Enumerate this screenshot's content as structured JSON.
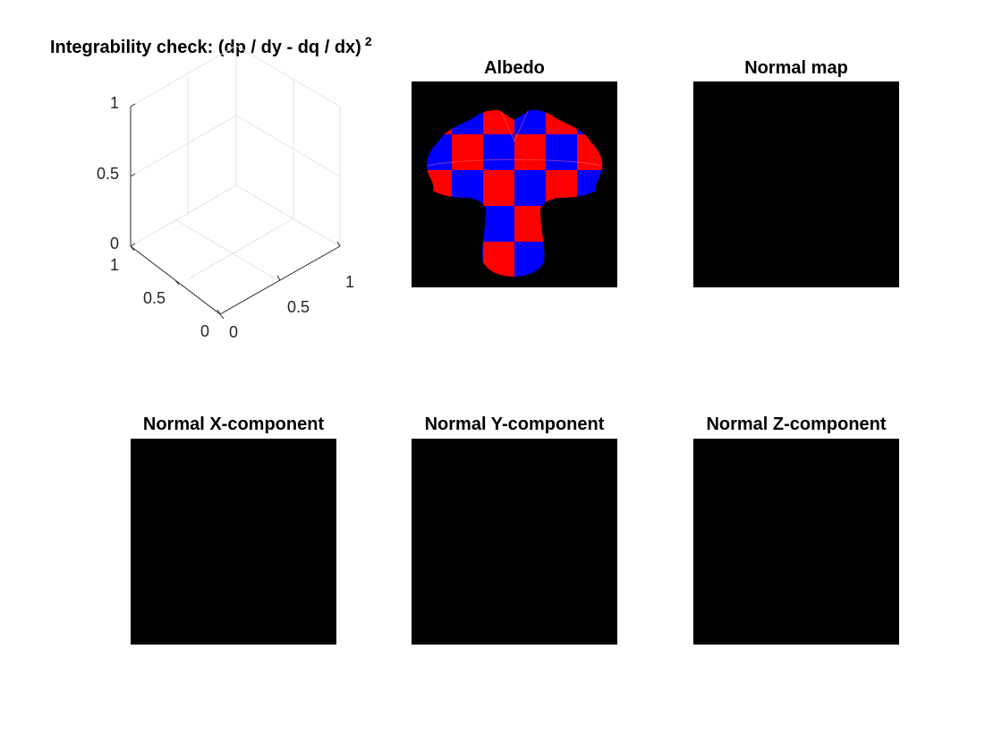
{
  "chart_data": [
    {
      "type": "surface",
      "title": "Integrability check: (dp / dy - dq / dx)",
      "title_superscript": "2",
      "x_ticks": [
        "0",
        "0.5",
        "1"
      ],
      "y_ticks": [
        "0",
        "0.5",
        "1"
      ],
      "z_ticks": [
        "0",
        "0.5",
        "1"
      ],
      "xlim": [
        0,
        1
      ],
      "ylim": [
        0,
        1
      ],
      "zlim": [
        0,
        1
      ],
      "grid": true,
      "series": []
    },
    {
      "type": "image",
      "title": "Albedo",
      "description_colors": {
        "background": "#000000",
        "check_a": "#ff0000",
        "check_b": "#0000ff"
      }
    },
    {
      "type": "image",
      "title": "Normal map",
      "fill": "#000000"
    },
    {
      "type": "image",
      "title": "Normal X-component",
      "fill": "#000000"
    },
    {
      "type": "image",
      "title": "Normal Y-component",
      "fill": "#000000"
    },
    {
      "type": "image",
      "title": "Normal Z-component",
      "fill": "#000000"
    }
  ]
}
